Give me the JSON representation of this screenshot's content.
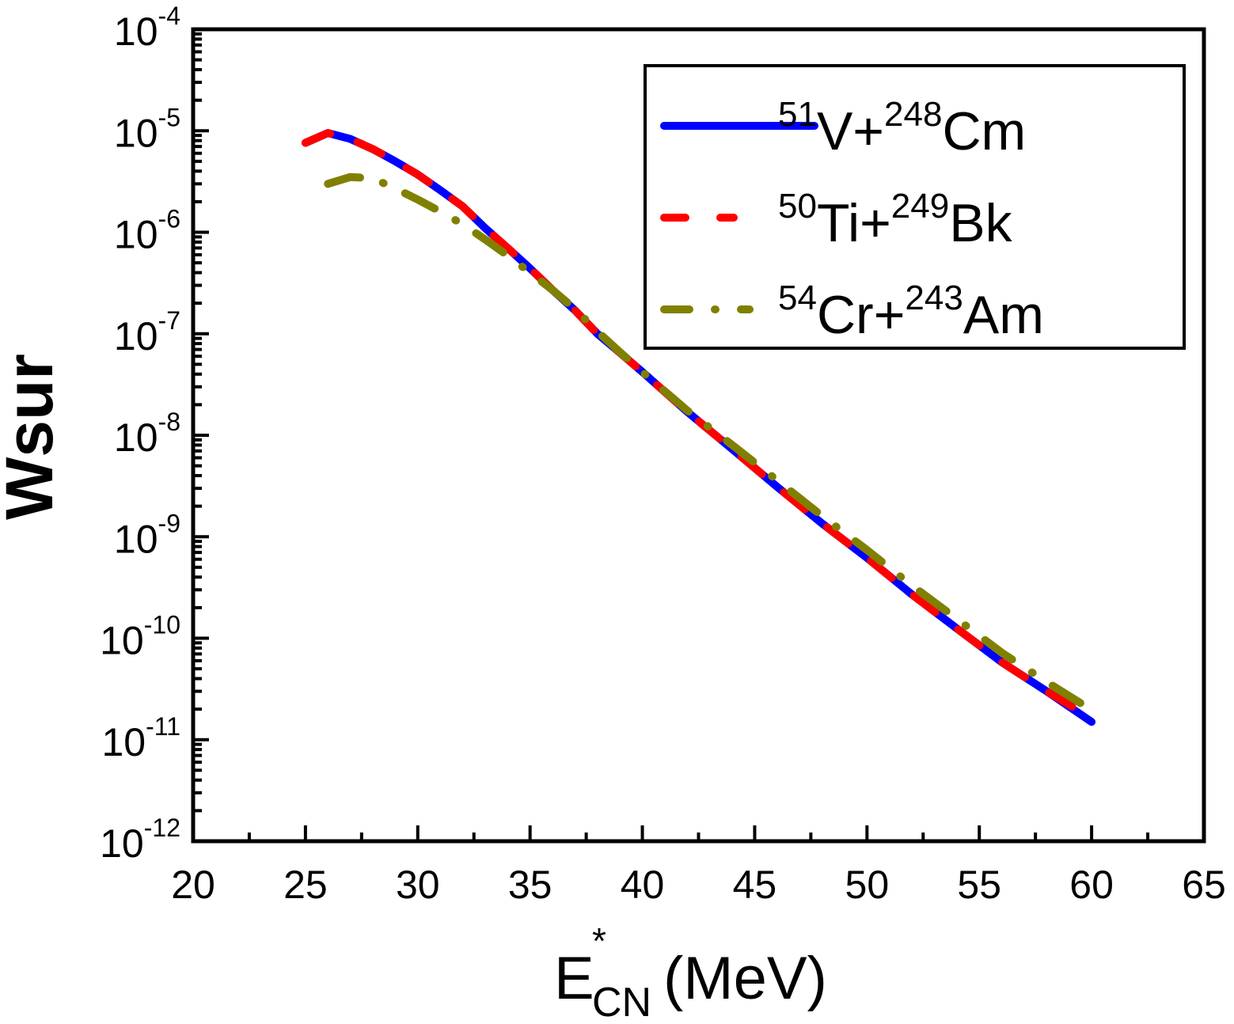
{
  "chart_data": {
    "type": "line",
    "title": "",
    "xlabel": {
      "main": "E",
      "sup": "*",
      "sub": "CN",
      "unit": "(MeV)"
    },
    "ylabel": "Wsur",
    "xlim": [
      20,
      65
    ],
    "ylim": [
      1e-12,
      0.0001
    ],
    "yscale": "log",
    "grid": false,
    "x_ticks": [
      20,
      25,
      30,
      35,
      40,
      45,
      50,
      55,
      60,
      65
    ],
    "x_tick_labels": [
      "20",
      "25",
      "30",
      "35",
      "40",
      "45",
      "50",
      "55",
      "60",
      "65"
    ],
    "y_ticks": [
      {
        "base": "10",
        "exp": "-4"
      },
      {
        "base": "10",
        "exp": "-5"
      },
      {
        "base": "10",
        "exp": "-6"
      },
      {
        "base": "10",
        "exp": "-7"
      },
      {
        "base": "10",
        "exp": "-8"
      },
      {
        "base": "10",
        "exp": "-9"
      },
      {
        "base": "10",
        "exp": "-10"
      },
      {
        "base": "10",
        "exp": "-11"
      },
      {
        "base": "10",
        "exp": "-12"
      }
    ],
    "legend_position": "top-right",
    "series": [
      {
        "name": "51V+248Cm",
        "label_parts": [
          {
            "sup": "51",
            "text": "V+"
          },
          {
            "sup": "248",
            "text": "Cm"
          }
        ],
        "color": "#0000ff",
        "style": "solid",
        "x": [
          25,
          26,
          27,
          28,
          29,
          30,
          31,
          32,
          33,
          34,
          35,
          36,
          37,
          38,
          39,
          40,
          42,
          44,
          46,
          48,
          50,
          52,
          54,
          56,
          58,
          60
        ],
        "y": [
          7.6e-06,
          9.5e-06,
          8.3e-06,
          6.6e-06,
          5e-06,
          3.7e-06,
          2.6e-06,
          1.8e-06,
          1.1e-06,
          7e-07,
          4.4e-07,
          2.7e-07,
          1.7e-07,
          1e-07,
          6.5e-08,
          4.2e-08,
          1.7e-08,
          7.3e-09,
          3.1e-09,
          1.35e-09,
          6.2e-10,
          2.7e-10,
          1.25e-10,
          5.8e-11,
          3e-11,
          1.5e-11
        ]
      },
      {
        "name": "50Ti+249Bk",
        "label_parts": [
          {
            "sup": "50",
            "text": "Ti+"
          },
          {
            "sup": "249",
            "text": "Bk"
          }
        ],
        "color": "#ff0000",
        "style": "dashed",
        "x": [
          25,
          26,
          27,
          28,
          29,
          30,
          31,
          32,
          33,
          34,
          35,
          36,
          37,
          38,
          39,
          40,
          42,
          44,
          46,
          48,
          50,
          52,
          54,
          56,
          58,
          59.5
        ],
        "y": [
          7.6e-06,
          9.5e-06,
          8.3e-06,
          6.6e-06,
          5e-06,
          3.7e-06,
          2.6e-06,
          1.8e-06,
          1.1e-06,
          7e-07,
          4.4e-07,
          2.7e-07,
          1.7e-07,
          1e-07,
          6.5e-08,
          4.2e-08,
          1.7e-08,
          7.3e-09,
          3.1e-09,
          1.35e-09,
          6.2e-10,
          2.7e-10,
          1.25e-10,
          5.8e-11,
          3e-11,
          1.9e-11
        ]
      },
      {
        "name": "54Cr+243Am",
        "label_parts": [
          {
            "sup": "54",
            "text": "Cr+"
          },
          {
            "sup": "243",
            "text": "Am"
          }
        ],
        "color": "#808000",
        "style": "dash-dot",
        "x": [
          26,
          27,
          28,
          29,
          30,
          31,
          32,
          33,
          34,
          35,
          36,
          37,
          38,
          39,
          40,
          42,
          44,
          46,
          48,
          50,
          52,
          54,
          56,
          58,
          59.5
        ],
        "y": [
          3e-06,
          3.5e-06,
          3.4e-06,
          2.7e-06,
          2.1e-06,
          1.6e-06,
          1.2e-06,
          8.5e-07,
          5.9e-07,
          4e-07,
          2.7e-07,
          1.75e-07,
          1.05e-07,
          6.6e-08,
          4.2e-08,
          1.75e-08,
          8e-09,
          3.6e-09,
          1.6e-09,
          7.4e-10,
          3.3e-10,
          1.55e-10,
          7.2e-11,
          3.7e-11,
          2.3e-11
        ]
      }
    ]
  }
}
